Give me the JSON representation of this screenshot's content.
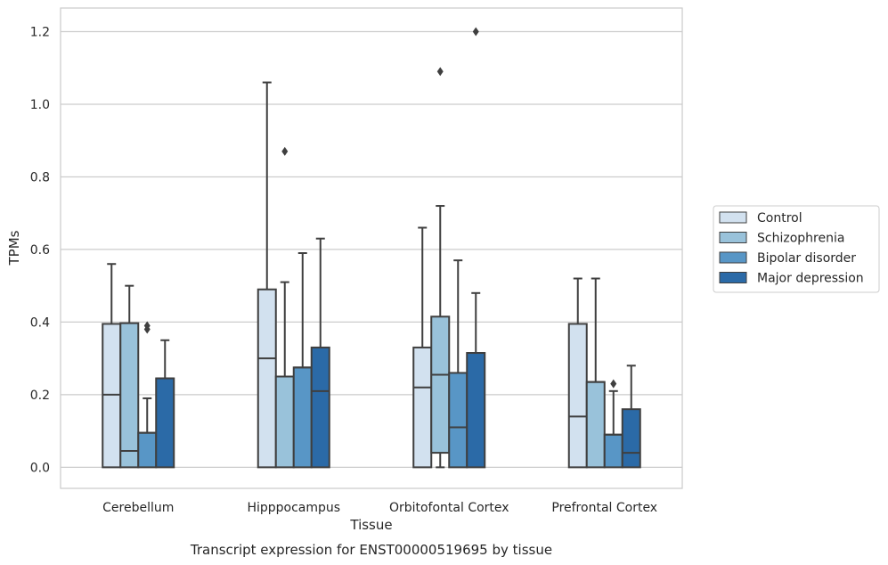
{
  "chart_data": {
    "type": "box",
    "xlabel": "Tissue",
    "ylabel": "TPMs",
    "caption": "Transcript expression for ENST00000519695 by tissue",
    "ylim": [
      -0.058,
      1.265
    ],
    "yticks": [
      "0.0",
      "0.2",
      "0.4",
      "0.6",
      "0.8",
      "1.0",
      "1.2"
    ],
    "ytick_values": [
      0.0,
      0.2,
      0.4,
      0.6,
      0.8,
      1.0,
      1.2
    ],
    "grid": "horizontal",
    "legend_position": "right",
    "categories": [
      "Cerebellum",
      "Hipppocampus",
      "Orbitofontal Cortex",
      "Prefrontal Cortex"
    ],
    "series": [
      {
        "name": "Control",
        "color": "#d2e1ef",
        "boxes": [
          {
            "whisker_low": 0.0,
            "q1": 0.0,
            "median": 0.2,
            "q3": 0.395,
            "whisker_high": 0.56,
            "outliers": []
          },
          {
            "whisker_low": 0.0,
            "q1": 0.0,
            "median": 0.3,
            "q3": 0.49,
            "whisker_high": 1.06,
            "outliers": []
          },
          {
            "whisker_low": 0.0,
            "q1": 0.0,
            "median": 0.22,
            "q3": 0.33,
            "whisker_high": 0.66,
            "outliers": []
          },
          {
            "whisker_low": 0.0,
            "q1": 0.0,
            "median": 0.14,
            "q3": 0.395,
            "whisker_high": 0.52,
            "outliers": []
          }
        ]
      },
      {
        "name": "Schizophrenia",
        "color": "#99c2da",
        "boxes": [
          {
            "whisker_low": 0.0,
            "q1": 0.0,
            "median": 0.045,
            "q3": 0.397,
            "whisker_high": 0.5,
            "outliers": []
          },
          {
            "whisker_low": 0.0,
            "q1": 0.0,
            "median": 0.25,
            "q3": 0.25,
            "whisker_high": 0.51,
            "outliers": [
              0.87
            ]
          },
          {
            "whisker_low": 0.0,
            "q1": 0.04,
            "median": 0.255,
            "q3": 0.415,
            "whisker_high": 0.72,
            "outliers": [
              1.09
            ]
          },
          {
            "whisker_low": 0.0,
            "q1": 0.0,
            "median": 0.235,
            "q3": 0.235,
            "whisker_high": 0.52,
            "outliers": []
          }
        ]
      },
      {
        "name": "Bipolar disorder",
        "color": "#5896c6",
        "boxes": [
          {
            "whisker_low": 0.0,
            "q1": 0.0,
            "median": 0.095,
            "q3": 0.095,
            "whisker_high": 0.19,
            "outliers": [
              0.38,
              0.39
            ]
          },
          {
            "whisker_low": 0.0,
            "q1": 0.0,
            "median": 0.275,
            "q3": 0.275,
            "whisker_high": 0.59,
            "outliers": []
          },
          {
            "whisker_low": 0.0,
            "q1": 0.0,
            "median": 0.11,
            "q3": 0.26,
            "whisker_high": 0.57,
            "outliers": []
          },
          {
            "whisker_low": 0.0,
            "q1": 0.0,
            "median": 0.09,
            "q3": 0.09,
            "whisker_high": 0.21,
            "outliers": [
              0.23
            ]
          }
        ]
      },
      {
        "name": "Major depression",
        "color": "#2b6aa7",
        "boxes": [
          {
            "whisker_low": 0.0,
            "q1": 0.0,
            "median": 0.245,
            "q3": 0.245,
            "whisker_high": 0.35,
            "outliers": []
          },
          {
            "whisker_low": 0.0,
            "q1": 0.0,
            "median": 0.21,
            "q3": 0.33,
            "whisker_high": 0.63,
            "outliers": []
          },
          {
            "whisker_low": 0.0,
            "q1": 0.0,
            "median": 0.315,
            "q3": 0.315,
            "whisker_high": 0.48,
            "outliers": [
              1.2
            ]
          },
          {
            "whisker_low": 0.0,
            "q1": 0.0,
            "median": 0.04,
            "q3": 0.16,
            "whisker_high": 0.28,
            "outliers": []
          }
        ]
      }
    ]
  }
}
